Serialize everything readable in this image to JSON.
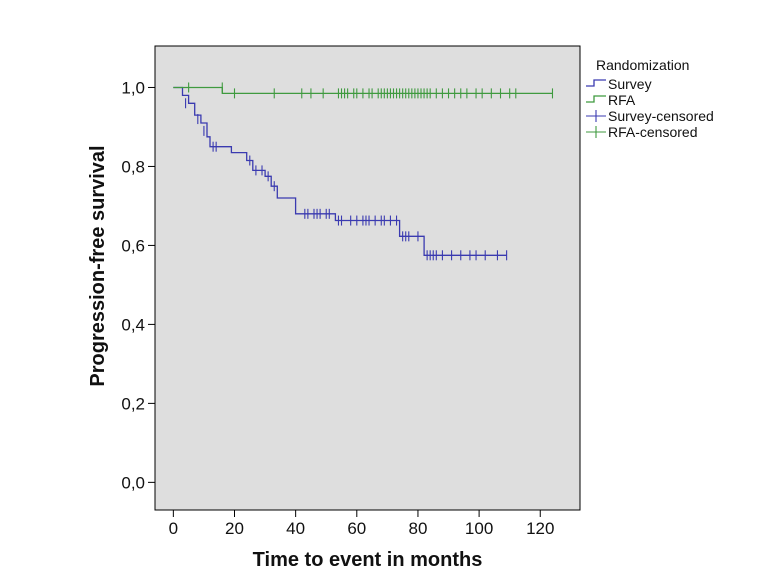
{
  "chart_data": {
    "type": "line",
    "title": "",
    "xlabel": "Time to event in months",
    "ylabel": "Progression-free survival",
    "xlim": [
      -6,
      133
    ],
    "ylim": [
      -0.07,
      1.105
    ],
    "x_ticks": [
      0,
      20,
      40,
      60,
      80,
      100,
      120
    ],
    "y_ticks": [
      0.0,
      0.2,
      0.4,
      0.6,
      0.8,
      1.0
    ],
    "x_tick_labels": [
      "0",
      "20",
      "40",
      "60",
      "80",
      "100",
      "120"
    ],
    "y_tick_labels": [
      "0,0",
      "0,2",
      "0,4",
      "0,6",
      "0,8",
      "1,0"
    ],
    "grid": false,
    "background": "#dedede",
    "legend": {
      "title": "Randomization",
      "placement": "top-right",
      "entries": [
        {
          "label": "Survey",
          "color": "#3a3ab0",
          "kind": "step"
        },
        {
          "label": "RFA",
          "color": "#3f9a3f",
          "kind": "step"
        },
        {
          "label": "Survey-censored",
          "color": "#3a3ab0",
          "kind": "cross"
        },
        {
          "label": "RFA-censored",
          "color": "#3f9a3f",
          "kind": "cross"
        }
      ]
    },
    "series": [
      {
        "name": "Survey",
        "color": "#3a3ab0",
        "steps": [
          [
            0,
            1.0
          ],
          [
            3,
            0.98
          ],
          [
            5,
            0.96
          ],
          [
            7,
            0.93
          ],
          [
            9,
            0.91
          ],
          [
            11,
            0.875
          ],
          [
            12,
            0.85
          ],
          [
            19,
            0.835
          ],
          [
            24,
            0.815
          ],
          [
            26,
            0.79
          ],
          [
            30,
            0.775
          ],
          [
            32,
            0.75
          ],
          [
            34,
            0.72
          ],
          [
            40,
            0.68
          ],
          [
            53,
            0.663
          ],
          [
            74,
            0.623
          ],
          [
            82,
            0.575
          ],
          [
            109,
            0.575
          ]
        ],
        "censored": [
          [
            4,
            0.96
          ],
          [
            8,
            0.92
          ],
          [
            10,
            0.89
          ],
          [
            13,
            0.85
          ],
          [
            14,
            0.85
          ],
          [
            25,
            0.815
          ],
          [
            27,
            0.79
          ],
          [
            29,
            0.79
          ],
          [
            31,
            0.775
          ],
          [
            33,
            0.75
          ],
          [
            43,
            0.68
          ],
          [
            44,
            0.68
          ],
          [
            46,
            0.68
          ],
          [
            47,
            0.68
          ],
          [
            48,
            0.68
          ],
          [
            50,
            0.68
          ],
          [
            51,
            0.68
          ],
          [
            54,
            0.663
          ],
          [
            55,
            0.663
          ],
          [
            58,
            0.663
          ],
          [
            60,
            0.663
          ],
          [
            62,
            0.663
          ],
          [
            63,
            0.663
          ],
          [
            64,
            0.663
          ],
          [
            66,
            0.663
          ],
          [
            68,
            0.663
          ],
          [
            69,
            0.663
          ],
          [
            71,
            0.663
          ],
          [
            73,
            0.663
          ],
          [
            75,
            0.623
          ],
          [
            76,
            0.623
          ],
          [
            77,
            0.623
          ],
          [
            80,
            0.623
          ],
          [
            83,
            0.575
          ],
          [
            84,
            0.575
          ],
          [
            85,
            0.575
          ],
          [
            86,
            0.575
          ],
          [
            88,
            0.575
          ],
          [
            91,
            0.575
          ],
          [
            94,
            0.575
          ],
          [
            97,
            0.575
          ],
          [
            99,
            0.575
          ],
          [
            102,
            0.575
          ],
          [
            106,
            0.575
          ],
          [
            109,
            0.575
          ]
        ]
      },
      {
        "name": "RFA",
        "color": "#3f9a3f",
        "steps": [
          [
            0,
            1.0
          ],
          [
            16,
            0.985
          ],
          [
            124,
            0.985
          ]
        ],
        "censored": [
          [
            5,
            1.0
          ],
          [
            16,
            1.0
          ],
          [
            20,
            0.985
          ],
          [
            33,
            0.985
          ],
          [
            42,
            0.985
          ],
          [
            45,
            0.985
          ],
          [
            49,
            0.985
          ],
          [
            54,
            0.985
          ],
          [
            55,
            0.985
          ],
          [
            56,
            0.985
          ],
          [
            57,
            0.985
          ],
          [
            59,
            0.985
          ],
          [
            60,
            0.985
          ],
          [
            62,
            0.985
          ],
          [
            64,
            0.985
          ],
          [
            65,
            0.985
          ],
          [
            67,
            0.985
          ],
          [
            68,
            0.985
          ],
          [
            69,
            0.985
          ],
          [
            70,
            0.985
          ],
          [
            71,
            0.985
          ],
          [
            72,
            0.985
          ],
          [
            73,
            0.985
          ],
          [
            74,
            0.985
          ],
          [
            75,
            0.985
          ],
          [
            76,
            0.985
          ],
          [
            77,
            0.985
          ],
          [
            78,
            0.985
          ],
          [
            79,
            0.985
          ],
          [
            80,
            0.985
          ],
          [
            81,
            0.985
          ],
          [
            82,
            0.985
          ],
          [
            83,
            0.985
          ],
          [
            84,
            0.985
          ],
          [
            86,
            0.985
          ],
          [
            88,
            0.985
          ],
          [
            90,
            0.985
          ],
          [
            92,
            0.985
          ],
          [
            94,
            0.985
          ],
          [
            96,
            0.985
          ],
          [
            99,
            0.985
          ],
          [
            101,
            0.985
          ],
          [
            104,
            0.985
          ],
          [
            107,
            0.985
          ],
          [
            110,
            0.985
          ],
          [
            112,
            0.985
          ],
          [
            124,
            0.985
          ]
        ]
      }
    ]
  }
}
